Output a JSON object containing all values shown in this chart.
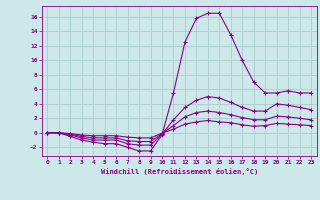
{
  "xlabel": "Windchill (Refroidissement éolien,°C)",
  "xlim": [
    -0.5,
    23.5
  ],
  "ylim": [
    -3.2,
    17.5
  ],
  "yticks": [
    -2,
    0,
    2,
    4,
    6,
    8,
    10,
    12,
    14,
    16
  ],
  "xticks": [
    0,
    1,
    2,
    3,
    4,
    5,
    6,
    7,
    8,
    9,
    10,
    11,
    12,
    13,
    14,
    15,
    16,
    17,
    18,
    19,
    20,
    21,
    22,
    23
  ],
  "background_color": "#cce8e8",
  "grid_color": "#aacccc",
  "line_color": "#880088",
  "lines": [
    {
      "x": [
        0,
        1,
        2,
        3,
        4,
        5,
        6,
        7,
        8,
        9,
        10,
        11,
        12,
        13,
        14,
        15,
        16,
        17,
        18,
        19,
        20,
        21,
        22,
        23
      ],
      "y": [
        0,
        0,
        -0.5,
        -1.0,
        -1.3,
        -1.5,
        -1.5,
        -2.0,
        -2.5,
        -2.5,
        -0.3,
        5.5,
        12.5,
        15.8,
        16.5,
        16.5,
        13.5,
        10.0,
        7.0,
        5.5,
        5.5,
        5.8,
        5.5,
        5.5
      ]
    },
    {
      "x": [
        0,
        1,
        2,
        3,
        4,
        5,
        6,
        7,
        8,
        9,
        10,
        11,
        12,
        13,
        14,
        15,
        16,
        17,
        18,
        19,
        20,
        21,
        22,
        23
      ],
      "y": [
        0,
        0,
        -0.3,
        -0.7,
        -1.0,
        -1.0,
        -1.0,
        -1.5,
        -1.7,
        -1.7,
        -0.2,
        1.8,
        3.5,
        4.5,
        5.0,
        4.8,
        4.2,
        3.5,
        3.0,
        3.0,
        4.0,
        3.8,
        3.5,
        3.2
      ]
    },
    {
      "x": [
        0,
        1,
        2,
        3,
        4,
        5,
        6,
        7,
        8,
        9,
        10,
        11,
        12,
        13,
        14,
        15,
        16,
        17,
        18,
        19,
        20,
        21,
        22,
        23
      ],
      "y": [
        0,
        0,
        -0.2,
        -0.5,
        -0.7,
        -0.7,
        -0.7,
        -1.1,
        -1.2,
        -1.2,
        -0.1,
        1.0,
        2.2,
        2.8,
        3.0,
        2.8,
        2.5,
        2.1,
        1.8,
        1.8,
        2.3,
        2.2,
        2.0,
        1.8
      ]
    },
    {
      "x": [
        0,
        1,
        2,
        3,
        4,
        5,
        6,
        7,
        8,
        9,
        10,
        11,
        12,
        13,
        14,
        15,
        16,
        17,
        18,
        19,
        20,
        21,
        22,
        23
      ],
      "y": [
        0,
        0,
        -0.1,
        -0.3,
        -0.4,
        -0.4,
        -0.4,
        -0.6,
        -0.7,
        -0.7,
        -0.05,
        0.5,
        1.2,
        1.5,
        1.7,
        1.5,
        1.4,
        1.1,
        0.9,
        1.0,
        1.3,
        1.2,
        1.1,
        1.0
      ]
    }
  ]
}
